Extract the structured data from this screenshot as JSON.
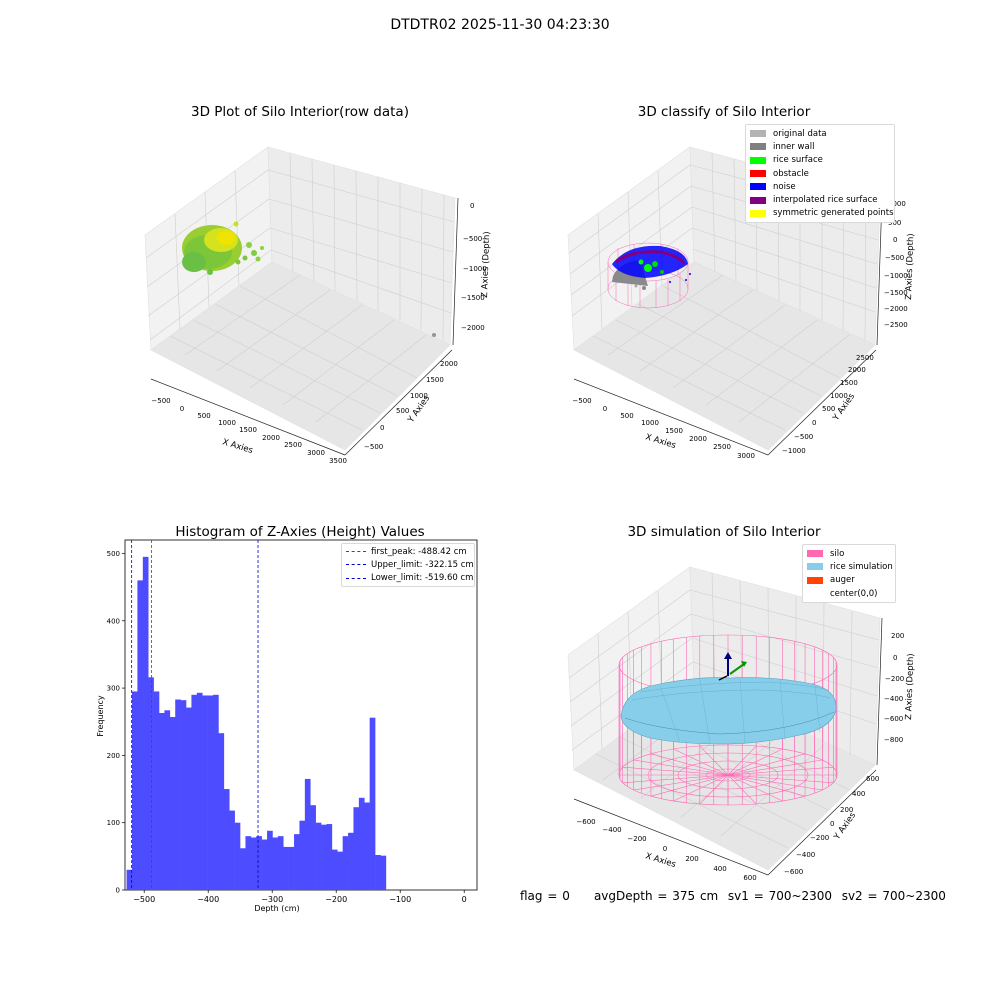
{
  "suptitle": "DTDTR02 2025-11-30 04:23:30",
  "footer": {
    "flag": "flag = 0",
    "avg_depth": "avgDepth = 375 cm",
    "sv1": "sv1 = 700~2300",
    "sv2": "sv2 = 700~2300"
  },
  "colors": {
    "original": "#b3b3b3",
    "inner_wall": "#808080",
    "rice_surface": "#00ff00",
    "obstacle": "#ff0000",
    "noise": "#0000ff",
    "interpolated": "#800080",
    "symmetric": "#ffff00",
    "silo": "#ff69b4",
    "rice_sim": "#87ceeb",
    "auger": "#ff4500",
    "hist_bar": "#4d4dff"
  },
  "chart_data": [
    {
      "type": "scatter",
      "title": "3D Plot of Silo Interior(row data)",
      "xlabel": "X Axies",
      "ylabel": "Y Axies",
      "zlabel": "Z Axies (Depth)",
      "x_ticks": [
        "−500",
        "0",
        "500",
        "1000",
        "1500",
        "2000",
        "2500",
        "3000",
        "3500"
      ],
      "y_ticks": [
        "−500",
        "0",
        "500",
        "1000",
        "1500",
        "2000"
      ],
      "z_ticks": [
        "0",
        "−500",
        "−1000",
        "−1500",
        "−2000"
      ],
      "grid": true
    },
    {
      "type": "scatter",
      "title": "3D classify of Silo Interior",
      "xlabel": "X Axies",
      "ylabel": "Y Axies",
      "zlabel": "Z Axies (Depth)",
      "x_ticks": [
        "−500",
        "0",
        "500",
        "1000",
        "1500",
        "2000",
        "2500",
        "3000"
      ],
      "y_ticks": [
        "−1000",
        "−500",
        "0",
        "500",
        "1000",
        "1500",
        "2000",
        "2500"
      ],
      "z_ticks": [
        "1000",
        "500",
        "0",
        "−500",
        "−1000",
        "−1500",
        "−2000",
        "−2500"
      ],
      "legend": [
        "original data",
        "inner wall",
        "rice surface",
        "obstacle",
        "noise",
        "interpolated rice surface",
        "symmetric generated points"
      ],
      "legend_position": "top-right",
      "grid": true
    },
    {
      "type": "bar",
      "title": "Histogram of Z-Axies (Height) Values",
      "xlabel": "Depth (cm)",
      "ylabel": "Frequency",
      "xlim": [
        -530,
        20
      ],
      "ylim": [
        0,
        520
      ],
      "x_ticks": [
        -500,
        -400,
        -300,
        -200,
        -100,
        0
      ],
      "x_tick_labels": [
        "−500",
        "−400",
        "−300",
        "−200",
        "−100",
        "0"
      ],
      "y_ticks": [
        0,
        100,
        200,
        300,
        400,
        500
      ],
      "bin_start": -527.5,
      "bin_width": 8.44,
      "values": [
        30,
        295,
        460,
        495,
        316,
        295,
        263,
        267,
        257,
        283,
        282,
        271,
        290,
        293,
        289,
        289,
        290,
        233,
        150,
        118,
        100,
        62,
        80,
        78,
        80,
        75,
        88,
        78,
        80,
        64,
        64,
        83,
        103,
        165,
        126,
        100,
        97,
        98,
        60,
        57,
        80,
        85,
        123,
        137,
        130,
        256,
        52,
        51
      ],
      "lines": [
        {
          "label": "first_peak: -488.42 cm",
          "x": -488.42,
          "color": "#ff0000"
        },
        {
          "label": "Upper_limit: -322.15 cm",
          "x": -322.15,
          "color": "#0000cc"
        },
        {
          "label": "Lower_limit: -519.60 cm",
          "x": -519.6,
          "color": "#0000cc"
        }
      ],
      "legend_position": "top-right"
    },
    {
      "type": "area",
      "title": "3D simulation of Silo Interior",
      "xlabel": "X Axies",
      "ylabel": "Y Axies",
      "zlabel": "Z Axies (Depth)",
      "x_ticks": [
        "−600",
        "−400",
        "−200",
        "0",
        "200",
        "400",
        "600"
      ],
      "y_ticks": [
        "−600",
        "−400",
        "−200",
        "0",
        "200",
        "400",
        "600"
      ],
      "z_ticks": [
        "200",
        "0",
        "−200",
        "−400",
        "−600",
        "−800"
      ],
      "legend": [
        "silo",
        "rice simulation",
        "auger",
        "center(0,0)"
      ],
      "legend_position": "top-right",
      "grid": true
    }
  ]
}
